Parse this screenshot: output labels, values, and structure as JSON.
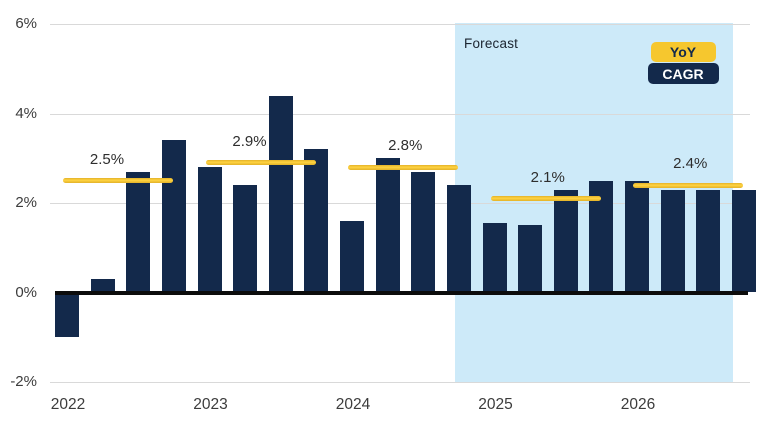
{
  "chart_data": {
    "type": "bar",
    "title": "",
    "xlabel": "",
    "ylabel": "",
    "unit": "%",
    "ylim": [
      -2,
      6
    ],
    "grid": "horizontal",
    "yticks": [
      {
        "value": 6,
        "label": "6%"
      },
      {
        "value": 4,
        "label": "4%"
      },
      {
        "value": 2,
        "label": "2%"
      },
      {
        "value": 0,
        "label": "0%"
      },
      {
        "value": -2,
        "label": "-2%"
      }
    ],
    "year_labels": [
      "2022",
      "2023",
      "2024",
      "2025",
      "2026"
    ],
    "bars_per_year": 4,
    "series": [
      {
        "name": "YoY",
        "values": [
          -1.0,
          0.3,
          2.7,
          3.4,
          2.8,
          2.4,
          4.4,
          3.2,
          1.6,
          3.0,
          2.7,
          2.4,
          1.55,
          1.5,
          2.3,
          2.5,
          2.5,
          2.3,
          2.3,
          2.3
        ]
      }
    ],
    "cagr_lines": [
      {
        "year": "2022",
        "value": 2.5,
        "label": "2.5%"
      },
      {
        "year": "2023",
        "value": 2.9,
        "label": "2.9%"
      },
      {
        "year": "2024",
        "value": 2.8,
        "label": "2.8%"
      },
      {
        "year": "2025",
        "value": 2.1,
        "label": "2.1%"
      },
      {
        "year": "2026",
        "value": 2.4,
        "label": "2.4%"
      }
    ],
    "forecast_region": {
      "label": "Forecast",
      "covers": "Q4 2024 through 2026"
    },
    "legend": {
      "position": "top-right",
      "entries": [
        {
          "label": "YoY",
          "color": "#f6c72e"
        },
        {
          "label": "CAGR",
          "color": "#13294b"
        }
      ]
    },
    "colors": {
      "bar_navy": "#13294b",
      "cagr_yellow": "#f2c12e",
      "forecast_blue": "#cdeaf9",
      "gridline": "#d9d9d9",
      "axis": "#0c0c0c",
      "tick_text": "#3c3c3c"
    }
  }
}
